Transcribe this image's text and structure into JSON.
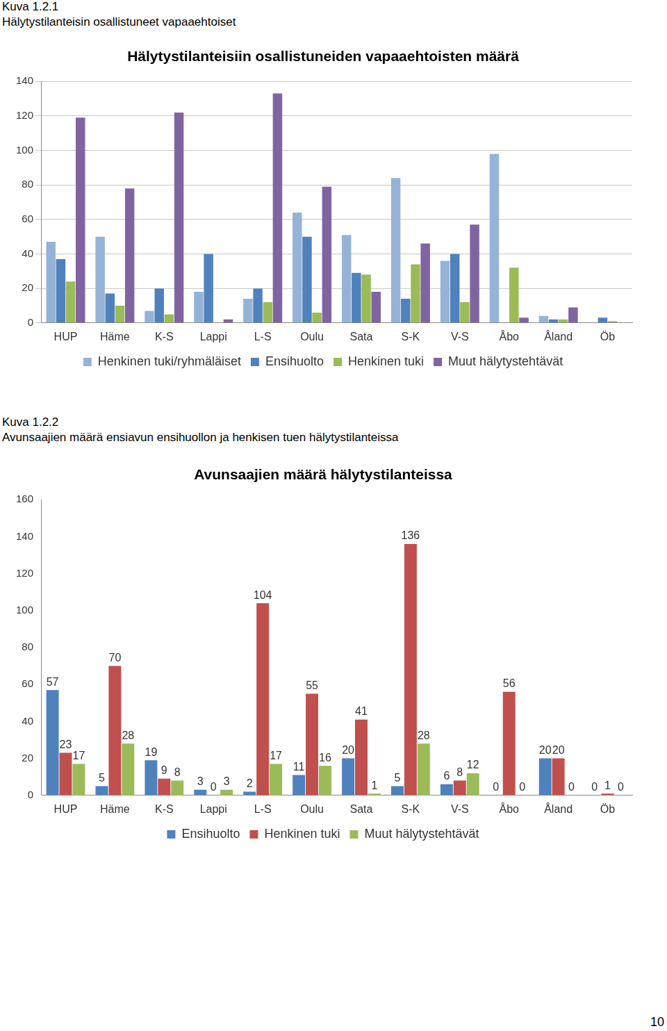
{
  "document": {
    "figures": [
      {
        "label": "Kuva 1.2.1",
        "caption": "Hälytystilanteisin osallistuneet vapaaehtoiset"
      },
      {
        "label": "Kuva 1.2.2",
        "caption": "Avunsaajien määrä ensiavun ensihuollon ja henkisen tuen hälytystilanteissa"
      }
    ],
    "page_number": "10"
  },
  "chart_data": [
    {
      "type": "bar",
      "title": "Hälytystilanteisiin osallistuneiden vapaaehtoisten määrä",
      "categories": [
        "HUP",
        "Häme",
        "K-S",
        "Lappi",
        "L-S",
        "Oulu",
        "Sata",
        "S-K",
        "V-S",
        "Åbo",
        "Åland",
        "Öb"
      ],
      "series": [
        {
          "name": "Henkinen tuki/ryhmäläiset",
          "color": "#95b3d7",
          "values": [
            47,
            50,
            7,
            18,
            14,
            64,
            51,
            84,
            36,
            98,
            4,
            0
          ]
        },
        {
          "name": "Ensihuolto",
          "color": "#4f81bd",
          "values": [
            37,
            17,
            20,
            40,
            20,
            50,
            29,
            14,
            40,
            0,
            2,
            3
          ]
        },
        {
          "name": "Henkinen tuki",
          "color": "#9bbb59",
          "values": [
            24,
            10,
            5,
            0,
            12,
            6,
            28,
            34,
            12,
            32,
            2,
            1
          ]
        },
        {
          "name": "Muut hälytystehtävät",
          "color": "#8064a2",
          "values": [
            119,
            78,
            122,
            2,
            133,
            79,
            18,
            46,
            57,
            3,
            9,
            0
          ]
        }
      ],
      "ylim": [
        0,
        140
      ],
      "yticks": [
        0,
        20,
        40,
        60,
        80,
        100,
        120,
        140
      ],
      "grid": true,
      "legend": "bottom"
    },
    {
      "type": "bar",
      "title": "Avunsaajien määrä hälytystilanteissa",
      "categories": [
        "HUP",
        "Häme",
        "K-S",
        "Lappi",
        "L-S",
        "Oulu",
        "Sata",
        "S-K",
        "V-S",
        "Åbo",
        "Åland",
        "Öb"
      ],
      "series": [
        {
          "name": "Ensihuolto",
          "color": "#4f81bd",
          "values": [
            57,
            5,
            19,
            3,
            2,
            11,
            20,
            5,
            6,
            0,
            20,
            0
          ]
        },
        {
          "name": "Henkinen tuki",
          "color": "#c0504d",
          "values": [
            23,
            70,
            9,
            0,
            104,
            55,
            41,
            136,
            8,
            56,
            20,
            1
          ]
        },
        {
          "name": "Muut hälytystehtävät",
          "color": "#9bbb59",
          "values": [
            17,
            28,
            8,
            3,
            17,
            16,
            1,
            28,
            12,
            0,
            0,
            0
          ]
        }
      ],
      "ylim": [
        0,
        160
      ],
      "yticks": [
        0,
        20,
        40,
        60,
        80,
        100,
        120,
        140,
        160
      ],
      "grid": false,
      "legend": "bottom",
      "data_labels": true
    }
  ]
}
